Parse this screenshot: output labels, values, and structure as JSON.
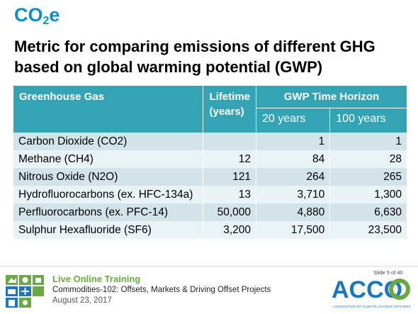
{
  "title": {
    "prefix": "CO",
    "sub": "2",
    "suffix": "e"
  },
  "subtitle": "Metric for comparing emissions of different GHG based on global warming potential (GWP)",
  "table": {
    "headers": {
      "gas": "Greenhouse Gas",
      "lifetime": "Lifetime (years)",
      "gwp": "GWP Time Horizon",
      "h20": "20 years",
      "h100": "100 years"
    },
    "rows": [
      {
        "gas": "Carbon Dioxide (CO2)",
        "lifetime": "",
        "y20": "1",
        "y100": "1"
      },
      {
        "gas": "Methane (CH4)",
        "lifetime": "12",
        "y20": "84",
        "y100": "28"
      },
      {
        "gas": "Nitrous Oxide (N2O)",
        "lifetime": "121",
        "y20": "264",
        "y100": "265"
      },
      {
        "gas": "Hydrofluorocarbons (ex. HFC-134a)",
        "lifetime": "13",
        "y20": "3,710",
        "y100": "1,300"
      },
      {
        "gas": "Perfluorocarbons (ex. PFC-14)",
        "lifetime": "50,000",
        "y20": "4,880",
        "y100": "6,630"
      },
      {
        "gas": "Sulphur Hexafluoride (SF6)",
        "lifetime": "3,200",
        "y20": "17,500",
        "y100": "23,500"
      }
    ]
  },
  "footer": {
    "line1": "Live Online Training",
    "line2": "Commodities-102: Offsets, Markets & Driving Offset Projects",
    "line3": "August 23, 2017",
    "slide": "Slide 5 of 40",
    "logo_text": "ACCO",
    "logo_subtext": "ASSOCIATION OF CLIMATE CHANGE OFFICERS"
  },
  "colors": {
    "title_blue": "#0c8ec9",
    "header_teal": "#34a3b3",
    "row_dark": "#d2e4ea",
    "row_light": "#e9f2f5",
    "footer_green": "#6aa843",
    "logo_blue": "#1a77bd"
  }
}
